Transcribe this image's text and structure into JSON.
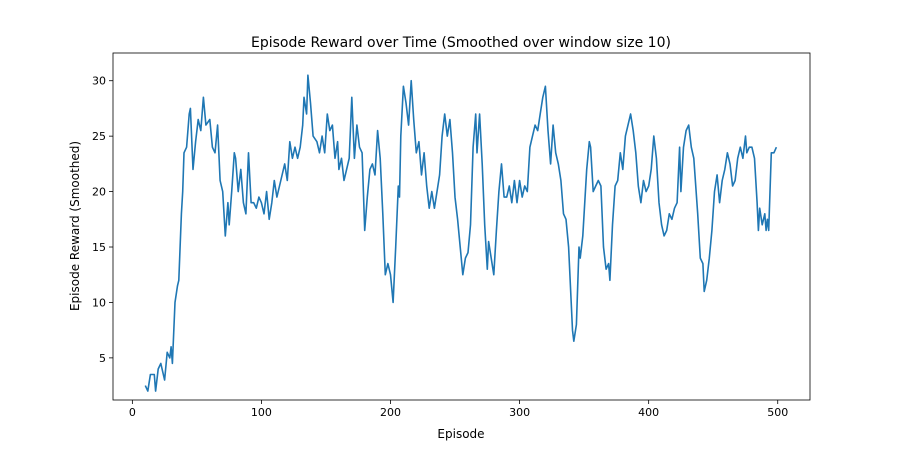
{
  "chart_data": {
    "type": "line",
    "title": "Episode Reward over Time (Smoothed over window size 10)",
    "xlabel": "Episode",
    "ylabel": "Episode Reward (Smoothed)",
    "xlim": [
      -15,
      525
    ],
    "ylim": [
      1.2,
      32.5
    ],
    "xticks": [
      0,
      100,
      200,
      300,
      400,
      500
    ],
    "yticks": [
      5,
      10,
      15,
      20,
      25,
      30
    ],
    "grid": false,
    "line_color": "#1f77b4",
    "series": [
      {
        "name": "Episode Reward (Smoothed)",
        "x": [
          10,
          12,
          14,
          17,
          18,
          20,
          22,
          25,
          27,
          29,
          30,
          31,
          33,
          35,
          36,
          38,
          39,
          40,
          42,
          44,
          45,
          47,
          49,
          51,
          53,
          55,
          57,
          60,
          62,
          64,
          66,
          68,
          70,
          72,
          74,
          75,
          77,
          79,
          80,
          82,
          84,
          86,
          88,
          90,
          92,
          94,
          96,
          98,
          100,
          102,
          104,
          106,
          108,
          110,
          112,
          115,
          118,
          120,
          122,
          124,
          126,
          128,
          130,
          132,
          133,
          135,
          136,
          138,
          140,
          143,
          145,
          147,
          149,
          151,
          153,
          155,
          157,
          159,
          160,
          162,
          164,
          166,
          168,
          170,
          172,
          174,
          176,
          178,
          180,
          182,
          184,
          186,
          188,
          190,
          192,
          194,
          196,
          198,
          200,
          202,
          204,
          206,
          207,
          208,
          210,
          212,
          214,
          216,
          218,
          220,
          222,
          224,
          226,
          228,
          230,
          232,
          234,
          236,
          238,
          240,
          242,
          244,
          246,
          248,
          250,
          252,
          254,
          256,
          258,
          260,
          262,
          264,
          266,
          267,
          269,
          271,
          273,
          275,
          276,
          278,
          280,
          282,
          284,
          286,
          288,
          290,
          292,
          294,
          296,
          298,
          300,
          302,
          304,
          306,
          308,
          310,
          312,
          314,
          316,
          318,
          320,
          322,
          324,
          326,
          328,
          330,
          332,
          334,
          336,
          338,
          340,
          341,
          342,
          344,
          346,
          347,
          349,
          352,
          354,
          355,
          357,
          359,
          361,
          363,
          365,
          367,
          369,
          370,
          372,
          374,
          376,
          378,
          380,
          382,
          384,
          386,
          388,
          390,
          392,
          394,
          396,
          398,
          400,
          402,
          404,
          406,
          408,
          410,
          412,
          414,
          416,
          418,
          420,
          422,
          424,
          425,
          427,
          429,
          431,
          433,
          435,
          438,
          440,
          442,
          443,
          445,
          447,
          449,
          451,
          453,
          455,
          457,
          459,
          461,
          463,
          465,
          467,
          469,
          471,
          473,
          475,
          476,
          478,
          480,
          482,
          484,
          485,
          486,
          488,
          490,
          491,
          492,
          493,
          495,
          497,
          499
        ],
        "y": [
          2.5,
          2,
          3.5,
          3.5,
          2,
          4,
          4.5,
          3,
          5.5,
          5,
          6,
          4.5,
          10,
          11.5,
          12,
          18,
          20,
          23.5,
          24,
          27,
          27.5,
          22,
          24.5,
          26.5,
          25.5,
          28.5,
          26,
          26.5,
          24,
          23.5,
          26,
          21,
          20,
          16,
          19,
          17,
          20,
          23.5,
          23,
          20,
          22,
          19,
          18,
          23.5,
          19,
          19,
          18.5,
          19.5,
          19,
          18,
          20,
          17.5,
          19,
          21,
          19.5,
          21,
          22.5,
          21,
          24.5,
          23,
          24,
          23,
          24,
          26,
          28.5,
          27,
          30.5,
          28,
          25,
          24.5,
          23.5,
          25,
          23.5,
          27,
          25.5,
          26,
          23,
          24.5,
          22,
          23,
          21,
          22,
          23,
          28.5,
          23,
          26,
          24,
          23.5,
          16.5,
          19.5,
          22,
          22.5,
          21.5,
          25.5,
          23,
          18,
          12.5,
          13.5,
          12.5,
          10,
          15,
          20.5,
          19.5,
          25,
          29.5,
          28,
          26,
          30,
          26.5,
          23.5,
          24.5,
          21.5,
          23.5,
          20.5,
          18.5,
          20,
          18.5,
          20,
          21.5,
          25,
          27,
          25,
          26.5,
          23.5,
          19.5,
          17.5,
          15,
          12.5,
          14,
          14.5,
          17,
          24,
          27,
          23.5,
          27,
          22.5,
          17,
          13,
          15.5,
          14,
          12.5,
          16.5,
          20,
          22.5,
          19.5,
          19.5,
          20.5,
          19,
          21,
          19,
          21,
          19.5,
          20.5,
          20,
          24,
          25,
          26,
          25.5,
          27,
          28.5,
          29.5,
          25.5,
          22.5,
          26,
          23.5,
          22.5,
          21,
          18,
          17.5,
          15,
          10,
          7.5,
          6.5,
          8,
          15,
          14,
          16,
          22,
          24.5,
          24,
          20,
          20.5,
          21,
          20.5,
          15,
          13,
          13.5,
          12,
          17,
          20.5,
          21,
          23.5,
          22,
          25,
          26,
          27,
          25.5,
          23.5,
          20.5,
          19,
          21,
          20,
          20.5,
          22,
          25,
          23,
          19,
          17,
          16,
          16.5,
          18,
          17.5,
          18.5,
          19,
          24,
          20,
          24,
          25.5,
          26,
          24,
          23,
          18,
          14,
          13.5,
          11,
          12,
          14,
          16.5,
          20,
          21.5,
          19,
          21,
          22,
          23.5,
          22.5,
          20.5,
          21,
          23,
          24,
          23,
          25,
          23.5,
          24,
          24,
          23,
          19,
          16.5,
          18.5,
          17,
          18,
          16.5,
          17.5,
          16.5,
          23.5,
          23.5,
          24
        ]
      }
    ]
  }
}
